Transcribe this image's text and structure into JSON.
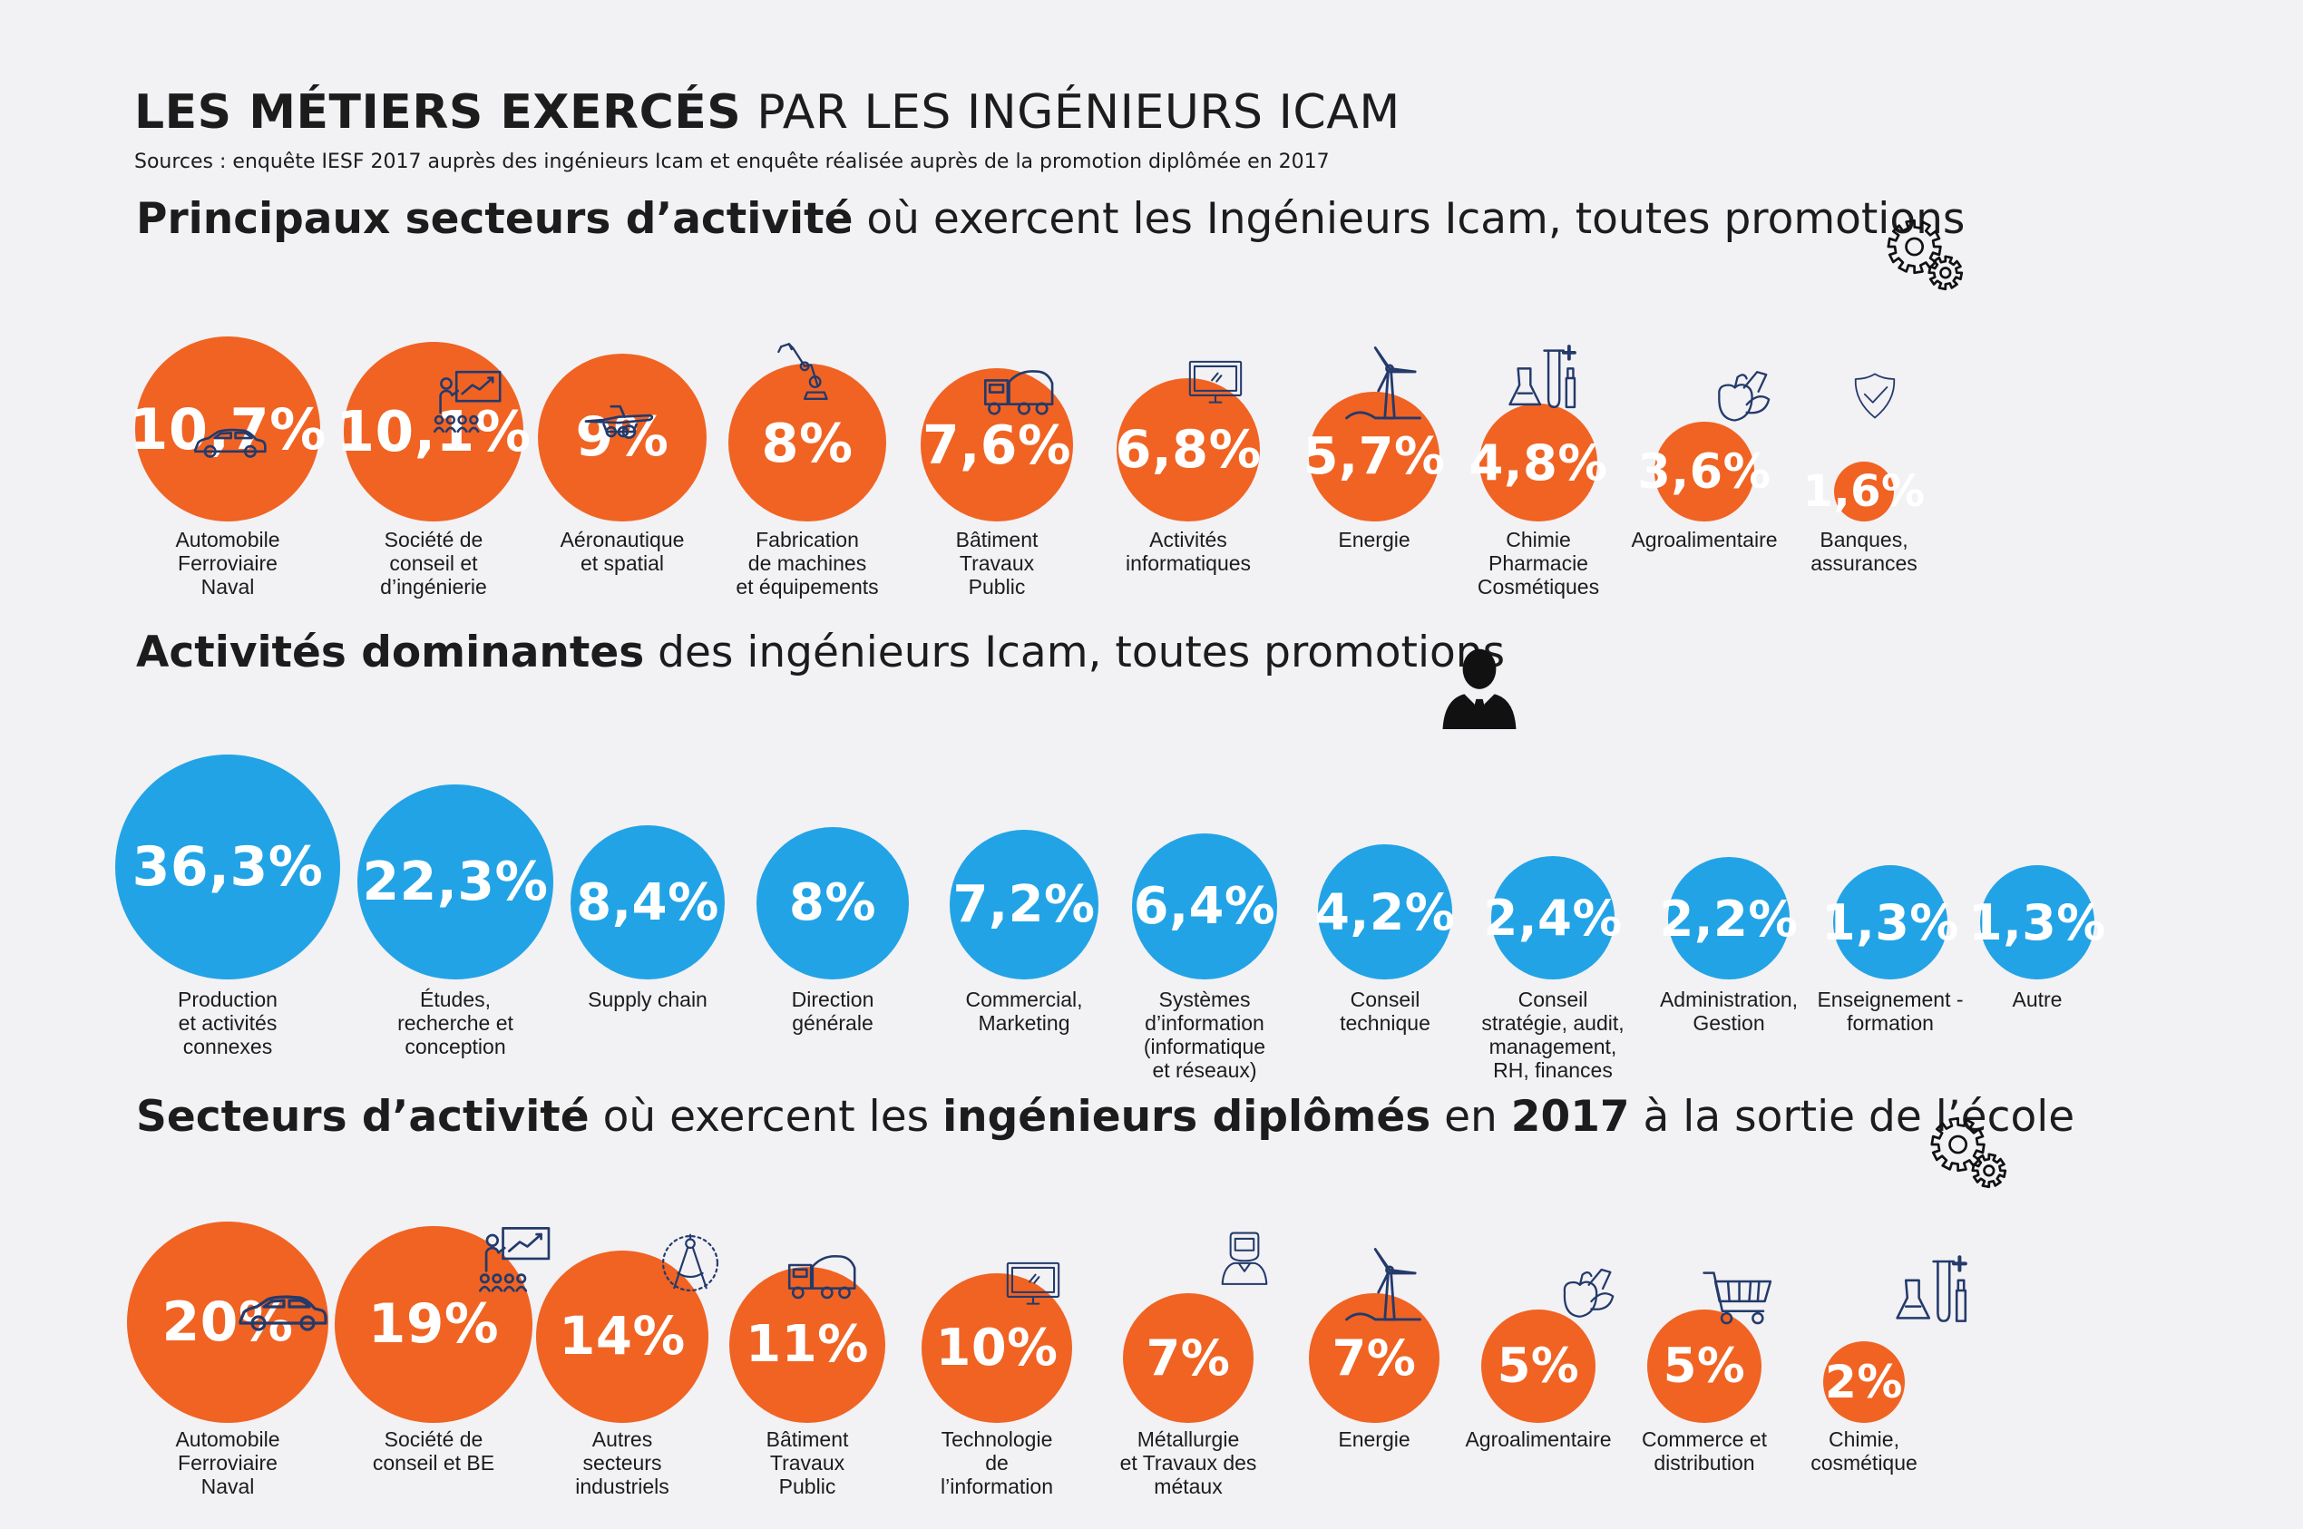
{
  "header": {
    "title_bold": "LES MÉTIERS EXERCÉS",
    "title_rest": "PAR LES INGÉNIEURS ICAM",
    "sources": "Sources : enquête IESF 2017 auprès des ingénieurs Icam et enquête réalisée auprès de la promotion diplômée en 2017"
  },
  "sections": [
    {
      "title_parts": [
        {
          "text": "Principaux secteurs d’activité",
          "bold": true
        },
        {
          "text": " où exercent les Ingénieurs Icam, toutes promotions",
          "bold": false
        }
      ],
      "icon": "gears-icon"
    },
    {
      "title_parts": [
        {
          "text": "Activités dominantes",
          "bold": true
        },
        {
          "text": " des ingénieurs Icam, toutes promotions",
          "bold": false
        }
      ],
      "icon": "person-icon"
    },
    {
      "title_parts": [
        {
          "text": "Secteurs d’activité",
          "bold": true
        },
        {
          "text": " où exercent les ",
          "bold": false
        },
        {
          "text": "ingénieurs diplômés",
          "bold": true
        },
        {
          "text": " en ",
          "bold": false
        },
        {
          "text": "2017",
          "bold": true
        },
        {
          "text": " à la sortie de l’école",
          "bold": false
        }
      ],
      "icon": "gears-icon"
    }
  ],
  "colors": {
    "orange": "#f06323",
    "blue": "#22a3e6",
    "background": "#f2f1f4",
    "text": "#1c1c1c"
  },
  "chart_data": [
    {
      "type": "bubble",
      "unit": "%",
      "color": "#f06323",
      "categories": [
        "Automobile\nFerroviaire\nNaval",
        "Société de\nconseil et\nd’ingénierie",
        "Aéronautique\net spatial",
        "Fabrication\nde machines\net équipements",
        "Bâtiment\nTravaux\nPublic",
        "Activités\ninformatiques",
        "Energie",
        "Chimie\nPharmacie\nCosmétiques",
        "Agroalimentaire",
        "Banques,\nassurances"
      ],
      "values": [
        10.7,
        10.1,
        9,
        8,
        7.6,
        6.8,
        5.7,
        4.8,
        3.6,
        1.6
      ],
      "value_labels": [
        "10,7%",
        "10,1%",
        "9%",
        "8%",
        "7,6%",
        "6,8%",
        "5,7%",
        "4,8%",
        "3,6%",
        "1,6%"
      ],
      "icons": [
        "car-icon",
        "presentation-icon",
        "airplane-icon",
        "robot-arm-icon",
        "truck-icon",
        "monitor-icon",
        "wind-turbine-icon",
        "lab-flasks-icon",
        "fruit-icon",
        "shield-icon"
      ]
    },
    {
      "type": "bubble",
      "unit": "%",
      "color": "#22a3e6",
      "categories": [
        "Production\net activités\nconnexes",
        "Études,\nrecherche et\nconception",
        "Supply chain",
        "Direction\ngénérale",
        "Commercial,\nMarketing",
        "Systèmes\nd’information\n(informatique\net réseaux)",
        "Conseil\ntechnique",
        "Conseil\nstratégie, audit,\nmanagement,\nRH, finances",
        "Administration,\nGestion",
        "Enseignement -\nformation",
        "Autre"
      ],
      "values": [
        36.3,
        22.3,
        8.4,
        8,
        7.2,
        6.4,
        4.2,
        2.4,
        2.2,
        1.3,
        1.3
      ],
      "value_labels": [
        "36,3%",
        "22,3%",
        "8,4%",
        "8%",
        "7,2%",
        "6,4%",
        "4,2%",
        "2,4%",
        "2,2%",
        "1,3%",
        "1,3%"
      ]
    },
    {
      "type": "bubble",
      "unit": "%",
      "color": "#f06323",
      "categories": [
        "Automobile\nFerroviaire\nNaval",
        "Société de\nconseil et BE",
        "Autres\nsecteurs\nindustriels",
        "Bâtiment\nTravaux\nPublic",
        "Technologie\nde\nl’information",
        "Métallurgie\net Travaux des\nmétaux",
        "Energie",
        "Agroalimentaire",
        "Commerce et\ndistribution",
        "Chimie,\ncosmétique"
      ],
      "values": [
        20,
        19,
        14,
        11,
        10,
        7,
        7,
        5,
        5,
        2
      ],
      "value_labels": [
        "20%",
        "19%",
        "14%",
        "11%",
        "10%",
        "7%",
        "7%",
        "5%",
        "5%",
        "2%"
      ],
      "icons": [
        "car-icon",
        "presentation-icon",
        "compass-icon",
        "truck-icon",
        "monitor-icon",
        "welder-icon",
        "wind-turbine-icon",
        "fruit-icon",
        "shopping-cart-icon",
        "lab-flasks-icon"
      ]
    }
  ]
}
